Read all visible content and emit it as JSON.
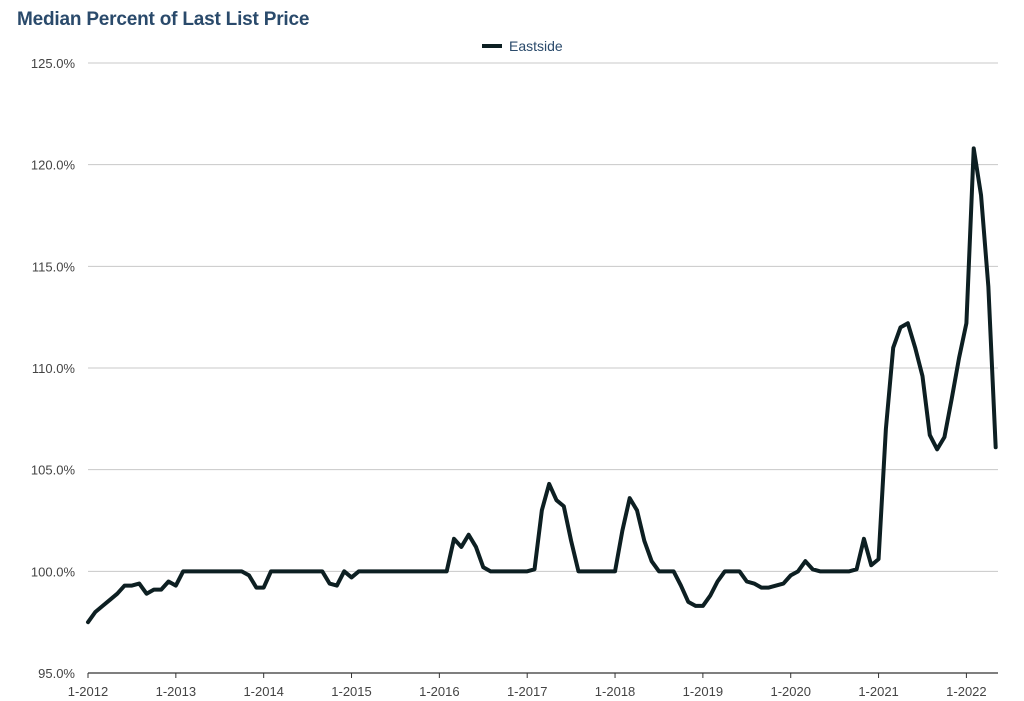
{
  "title": "Median Percent of Last List Price",
  "legend": {
    "series_name": "Eastside",
    "color": "#0d1f22"
  },
  "chart_data": {
    "type": "line",
    "title": "Median Percent of Last List Price",
    "xlabel": "",
    "ylabel": "",
    "ylim": [
      95,
      125
    ],
    "yticks": [
      95,
      100,
      105,
      110,
      115,
      120,
      125
    ],
    "ytick_labels": [
      "95.0%",
      "100.0%",
      "105.0%",
      "110.0%",
      "115.0%",
      "120.0%",
      "125.0%"
    ],
    "xtick_labels": [
      "1-2012",
      "1-2013",
      "1-2014",
      "1-2015",
      "1-2016",
      "1-2017",
      "1-2018",
      "1-2019",
      "1-2020",
      "1-2021",
      "1-2022"
    ],
    "grid": "horizontal",
    "legend_position": "top-center",
    "series": [
      {
        "name": "Eastside",
        "color": "#0d1f22",
        "points": [
          [
            "2012-01",
            97.5
          ],
          [
            "2012-02",
            98.0
          ],
          [
            "2012-03",
            98.3
          ],
          [
            "2012-04",
            98.6
          ],
          [
            "2012-05",
            98.9
          ],
          [
            "2012-06",
            99.3
          ],
          [
            "2012-07",
            99.3
          ],
          [
            "2012-08",
            99.4
          ],
          [
            "2012-09",
            98.9
          ],
          [
            "2012-10",
            99.1
          ],
          [
            "2012-11",
            99.1
          ],
          [
            "2012-12",
            99.5
          ],
          [
            "2013-01",
            99.3
          ],
          [
            "2013-02",
            100.0
          ],
          [
            "2013-03",
            100.0
          ],
          [
            "2013-04",
            100.0
          ],
          [
            "2013-05",
            100.0
          ],
          [
            "2013-06",
            100.0
          ],
          [
            "2013-07",
            100.0
          ],
          [
            "2013-08",
            100.0
          ],
          [
            "2013-09",
            100.0
          ],
          [
            "2013-10",
            100.0
          ],
          [
            "2013-11",
            99.8
          ],
          [
            "2013-12",
            99.2
          ],
          [
            "2014-01",
            99.2
          ],
          [
            "2014-02",
            100.0
          ],
          [
            "2014-03",
            100.0
          ],
          [
            "2014-04",
            100.0
          ],
          [
            "2014-05",
            100.0
          ],
          [
            "2014-06",
            100.0
          ],
          [
            "2014-07",
            100.0
          ],
          [
            "2014-08",
            100.0
          ],
          [
            "2014-09",
            100.0
          ],
          [
            "2014-10",
            99.4
          ],
          [
            "2014-11",
            99.3
          ],
          [
            "2014-12",
            100.0
          ],
          [
            "2015-01",
            99.7
          ],
          [
            "2015-02",
            100.0
          ],
          [
            "2015-03",
            100.0
          ],
          [
            "2015-04",
            100.0
          ],
          [
            "2015-05",
            100.0
          ],
          [
            "2015-06",
            100.0
          ],
          [
            "2015-07",
            100.0
          ],
          [
            "2015-08",
            100.0
          ],
          [
            "2015-09",
            100.0
          ],
          [
            "2015-10",
            100.0
          ],
          [
            "2015-11",
            100.0
          ],
          [
            "2015-12",
            100.0
          ],
          [
            "2016-01",
            100.0
          ],
          [
            "2016-02",
            100.0
          ],
          [
            "2016-03",
            101.6
          ],
          [
            "2016-04",
            101.2
          ],
          [
            "2016-05",
            101.8
          ],
          [
            "2016-06",
            101.2
          ],
          [
            "2016-07",
            100.2
          ],
          [
            "2016-08",
            100.0
          ],
          [
            "2016-09",
            100.0
          ],
          [
            "2016-10",
            100.0
          ],
          [
            "2016-11",
            100.0
          ],
          [
            "2016-12",
            100.0
          ],
          [
            "2017-01",
            100.0
          ],
          [
            "2017-02",
            100.1
          ],
          [
            "2017-03",
            103.0
          ],
          [
            "2017-04",
            104.3
          ],
          [
            "2017-05",
            103.5
          ],
          [
            "2017-06",
            103.2
          ],
          [
            "2017-07",
            101.5
          ],
          [
            "2017-08",
            100.0
          ],
          [
            "2017-09",
            100.0
          ],
          [
            "2017-10",
            100.0
          ],
          [
            "2017-11",
            100.0
          ],
          [
            "2017-12",
            100.0
          ],
          [
            "2018-01",
            100.0
          ],
          [
            "2018-02",
            102.0
          ],
          [
            "2018-03",
            103.6
          ],
          [
            "2018-04",
            103.0
          ],
          [
            "2018-05",
            101.5
          ],
          [
            "2018-06",
            100.5
          ],
          [
            "2018-07",
            100.0
          ],
          [
            "2018-08",
            100.0
          ],
          [
            "2018-09",
            100.0
          ],
          [
            "2018-10",
            99.3
          ],
          [
            "2018-11",
            98.5
          ],
          [
            "2018-12",
            98.3
          ],
          [
            "2019-01",
            98.3
          ],
          [
            "2019-02",
            98.8
          ],
          [
            "2019-03",
            99.5
          ],
          [
            "2019-04",
            100.0
          ],
          [
            "2019-05",
            100.0
          ],
          [
            "2019-06",
            100.0
          ],
          [
            "2019-07",
            99.5
          ],
          [
            "2019-08",
            99.4
          ],
          [
            "2019-09",
            99.2
          ],
          [
            "2019-10",
            99.2
          ],
          [
            "2019-11",
            99.3
          ],
          [
            "2019-12",
            99.4
          ],
          [
            "2020-01",
            99.8
          ],
          [
            "2020-02",
            100.0
          ],
          [
            "2020-03",
            100.5
          ],
          [
            "2020-04",
            100.1
          ],
          [
            "2020-05",
            100.0
          ],
          [
            "2020-06",
            100.0
          ],
          [
            "2020-07",
            100.0
          ],
          [
            "2020-08",
            100.0
          ],
          [
            "2020-09",
            100.0
          ],
          [
            "2020-10",
            100.1
          ],
          [
            "2020-11",
            101.6
          ],
          [
            "2020-12",
            100.3
          ],
          [
            "2021-01",
            100.6
          ],
          [
            "2021-02",
            107.0
          ],
          [
            "2021-03",
            111.0
          ],
          [
            "2021-04",
            112.0
          ],
          [
            "2021-05",
            112.2
          ],
          [
            "2021-06",
            111.0
          ],
          [
            "2021-07",
            109.6
          ],
          [
            "2021-08",
            106.7
          ],
          [
            "2021-09",
            106.0
          ],
          [
            "2021-10",
            106.6
          ],
          [
            "2021-11",
            108.5
          ],
          [
            "2021-12",
            110.5
          ],
          [
            "2022-01",
            112.2
          ],
          [
            "2022-02",
            120.8
          ],
          [
            "2022-03",
            118.5
          ],
          [
            "2022-04",
            114.0
          ],
          [
            "2022-05",
            106.1
          ]
        ]
      }
    ]
  }
}
